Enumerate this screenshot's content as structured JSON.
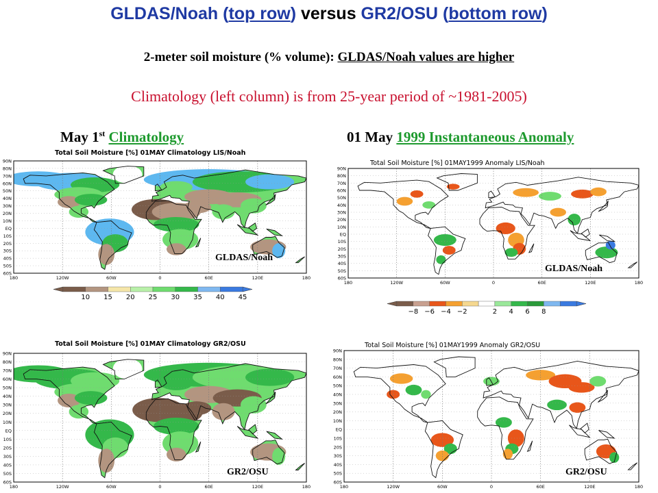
{
  "header": {
    "title_part1": "GLDAS/Noah (",
    "title_top_row": "top row",
    "title_part2": ") ",
    "title_versus": "versus",
    "title_part3": " GR2/OSU (",
    "title_bottom_row": "bottom row",
    "title_part4": ")",
    "subtitle_prefix": "2-meter soil moisture (% volume): ",
    "subtitle_emph": "GLDAS/Noah values are higher",
    "climatology_note": "Climatology (left column) is from 25-year period of ~1981-2005)"
  },
  "columns": {
    "left_head_prefix": "May 1",
    "left_head_sup": "st",
    "left_head_link": "Climatology",
    "right_head_prefix": "01 May ",
    "right_head_link": "1999 Instantaneous Anomaly"
  },
  "panels": {
    "tl": {
      "title": "Total Soil Moisture [%] 01MAY Climatology LIS/Noah",
      "model": "GLDAS/Noah"
    },
    "tr": {
      "title": "Total Soil Moisture [%] 01MAY1999 Anomaly LIS/Noah",
      "model": "GLDAS/Noah"
    },
    "bl": {
      "title": "Total Soil Moisture [%] 01MAY Climatology GR2/OSU",
      "model": "GR2/OSU"
    },
    "br": {
      "title": "Total Soil Moisture [%] 01MAY1999 Anomaly GR2/OSU",
      "model": "GR2/OSU"
    }
  },
  "lat_labels": [
    "90N",
    "80N",
    "70N",
    "60N",
    "50N",
    "40N",
    "30N",
    "20N",
    "10N",
    "EQ",
    "10S",
    "20S",
    "30S",
    "40S",
    "50S",
    "60S"
  ],
  "lon_labels": [
    "180",
    "120W",
    "60W",
    "0",
    "60E",
    "120E",
    "180"
  ],
  "colorbars": {
    "climatology": {
      "labels": [
        "10",
        "15",
        "20",
        "25",
        "30",
        "35",
        "40",
        "45"
      ],
      "colors": [
        "#7a5c4a",
        "#b39580",
        "#f5e6a8",
        "#b8f0a8",
        "#6fdc6f",
        "#34b84a",
        "#7fb8f0",
        "#3a7ae0"
      ]
    },
    "anomaly": {
      "labels": [
        "−8",
        "−6",
        "−4",
        "−2",
        "2",
        "4",
        "6",
        "8"
      ],
      "colors": [
        "#7a5c4a",
        "#c8a090",
        "#e8561a",
        "#f5a030",
        "#f5d890",
        "#ffffff",
        "#9ae89a",
        "#34b84a",
        "#2a9a3a",
        "#7fb8f0",
        "#3a7ae0"
      ]
    }
  }
}
